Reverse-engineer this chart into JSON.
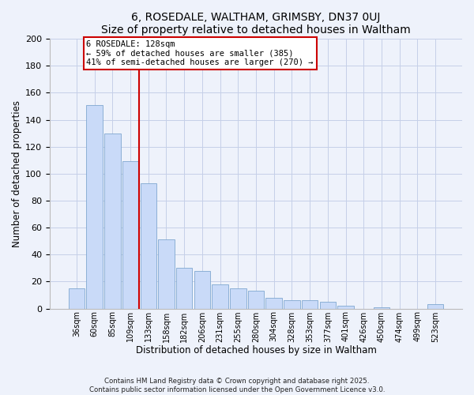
{
  "title": "6, ROSEDALE, WALTHAM, GRIMSBY, DN37 0UJ",
  "subtitle": "Size of property relative to detached houses in Waltham",
  "xlabel": "Distribution of detached houses by size in Waltham",
  "ylabel": "Number of detached properties",
  "bar_labels": [
    "36sqm",
    "60sqm",
    "85sqm",
    "109sqm",
    "133sqm",
    "158sqm",
    "182sqm",
    "206sqm",
    "231sqm",
    "255sqm",
    "280sqm",
    "304sqm",
    "328sqm",
    "353sqm",
    "377sqm",
    "401sqm",
    "426sqm",
    "450sqm",
    "474sqm",
    "499sqm",
    "523sqm"
  ],
  "bar_values": [
    15,
    151,
    130,
    109,
    93,
    51,
    30,
    28,
    18,
    15,
    13,
    8,
    6,
    6,
    5,
    2,
    0,
    1,
    0,
    0,
    3
  ],
  "bar_color": "#c9daf8",
  "bar_edge_color": "#7fa7d0",
  "vline_x_idx": 4,
  "vline_color": "#cc0000",
  "annotation_title": "6 ROSEDALE: 128sqm",
  "annotation_line1": "← 59% of detached houses are smaller (385)",
  "annotation_line2": "41% of semi-detached houses are larger (270) →",
  "annotation_box_color": "#ffffff",
  "annotation_box_edge": "#cc0000",
  "ylim": [
    0,
    200
  ],
  "yticks": [
    0,
    20,
    40,
    60,
    80,
    100,
    120,
    140,
    160,
    180,
    200
  ],
  "footer_line1": "Contains HM Land Registry data © Crown copyright and database right 2025.",
  "footer_line2": "Contains public sector information licensed under the Open Government Licence v3.0.",
  "bg_color": "#eef2fb",
  "grid_color": "#c5cfe8"
}
